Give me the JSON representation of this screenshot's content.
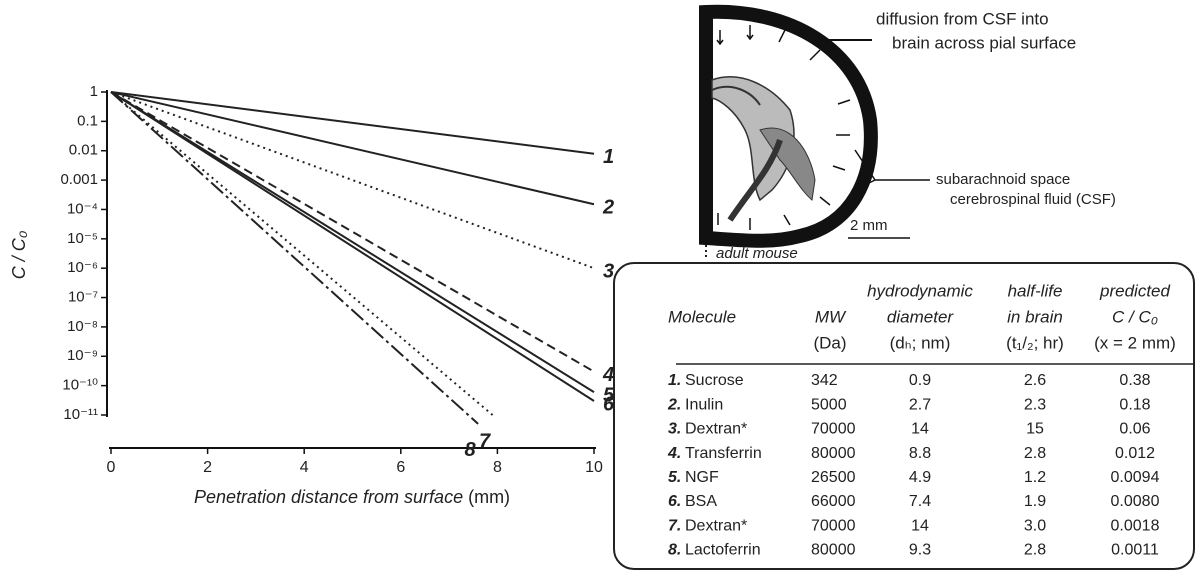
{
  "chart_data": {
    "type": "line",
    "y_label": "C / C₀",
    "x_label": "Penetration distance from surface",
    "x_unit": "(mm)",
    "xlim": [
      0,
      10
    ],
    "xticks": [
      0,
      2,
      4,
      6,
      8,
      10
    ],
    "ylim": [
      1e-11,
      1
    ],
    "ylog": true,
    "yticks": [
      1,
      0.1,
      0.01,
      0.001,
      {
        "value": 0.0001,
        "label": "10⁻⁴"
      },
      {
        "value": 1e-05,
        "label": "10⁻⁵"
      },
      {
        "value": 1e-06,
        "label": "10⁻⁶"
      },
      {
        "value": 1e-07,
        "label": "10⁻⁷"
      },
      {
        "value": 1e-08,
        "label": "10⁻⁸"
      },
      {
        "value": 1e-09,
        "label": "10⁻⁹"
      },
      {
        "value": 1e-10,
        "label": "10⁻¹⁰"
      },
      {
        "value": 1e-11,
        "label": "10⁻¹¹"
      }
    ],
    "series": [
      {
        "name": "1",
        "color": "#222",
        "dash": "solid",
        "x": [
          0,
          10
        ],
        "values": [
          1,
          0.0079
        ]
      },
      {
        "name": "2",
        "color": "#222",
        "dash": "solid",
        "x": [
          0,
          10
        ],
        "values": [
          1,
          0.00015
        ]
      },
      {
        "name": "3",
        "color": "#222",
        "dash": "dotted",
        "x": [
          0,
          10
        ],
        "values": [
          1,
          1e-06
        ]
      },
      {
        "name": "4",
        "color": "#222",
        "dash": "dashed",
        "x": [
          0,
          10
        ],
        "values": [
          1,
          3e-10
        ]
      },
      {
        "name": "5",
        "color": "#222",
        "dash": "solid",
        "x": [
          0,
          10
        ],
        "values": [
          1,
          6e-11
        ]
      },
      {
        "name": "6",
        "color": "#222",
        "dash": "solid",
        "x": [
          0,
          10
        ],
        "values": [
          1,
          3e-11
        ]
      },
      {
        "name": "7",
        "color": "#222",
        "dash": "dotted",
        "x": [
          0,
          7.9
        ],
        "values": [
          1,
          1e-11
        ]
      },
      {
        "name": "8",
        "color": "#222",
        "dash": "longdash",
        "x": [
          0,
          7.6
        ],
        "values": [
          1,
          5e-12
        ]
      }
    ]
  },
  "diagram": {
    "callout_top": [
      "diffusion from CSF into",
      "brain across pial surface"
    ],
    "callout_side": [
      "subarachnoid space",
      "cerebrospinal fluid (CSF)"
    ],
    "scale_bar": "2 mm",
    "caption": "adult mouse"
  },
  "table": {
    "headers": [
      [
        "Molecule"
      ],
      [
        "MW",
        "(Da)"
      ],
      [
        "hydrodynamic",
        "diameter",
        "(dₕ; nm)"
      ],
      [
        "half-life",
        "in brain",
        "(t₁/₂; hr)"
      ],
      [
        "predicted",
        "C / C₀",
        "(x = 2 mm)"
      ]
    ],
    "rows": [
      [
        "1.",
        "Sucrose",
        "342",
        "0.9",
        "2.6",
        "0.38"
      ],
      [
        "2.",
        "Inulin",
        "5000",
        "2.7",
        "2.3",
        "0.18"
      ],
      [
        "3.",
        "Dextran*",
        "70000",
        "14",
        "15",
        "0.06"
      ],
      [
        "4.",
        "Transferrin",
        "80000",
        "8.8",
        "2.8",
        "0.012"
      ],
      [
        "5.",
        "NGF",
        "26500",
        "4.9",
        "1.2",
        "0.0094"
      ],
      [
        "6.",
        "BSA",
        "66000",
        "7.4",
        "1.9",
        "0.0080"
      ],
      [
        "7.",
        "Dextran*",
        "70000",
        "14",
        "3.0",
        "0.0018"
      ],
      [
        "8.",
        "Lactoferrin",
        "80000",
        "9.3",
        "2.8",
        "0.0011"
      ]
    ]
  }
}
